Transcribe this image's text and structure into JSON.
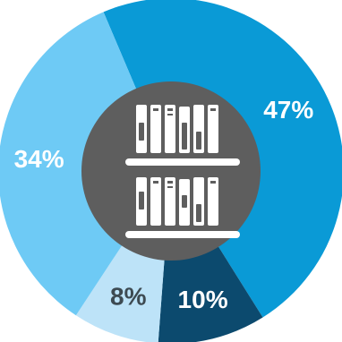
{
  "chart_data": {
    "type": "pie",
    "style": "donut",
    "title": "",
    "slices": [
      {
        "label": "47%",
        "value": 47,
        "color": "#0a9ad6",
        "text_color": "#ffffff"
      },
      {
        "label": "10%",
        "value": 10,
        "color": "#0c4a6e",
        "text_color": "#ffffff"
      },
      {
        "label": "8%",
        "value": 8,
        "color": "#bde3f8",
        "text_color": "#3d4a52"
      },
      {
        "label": "34%",
        "value": 34,
        "color": "#6ecaf5",
        "text_color": "#ffffff"
      }
    ],
    "center_color": "#5e5e5e",
    "center_icon": "bookshelf-icon",
    "start_angle_deg": -23
  }
}
